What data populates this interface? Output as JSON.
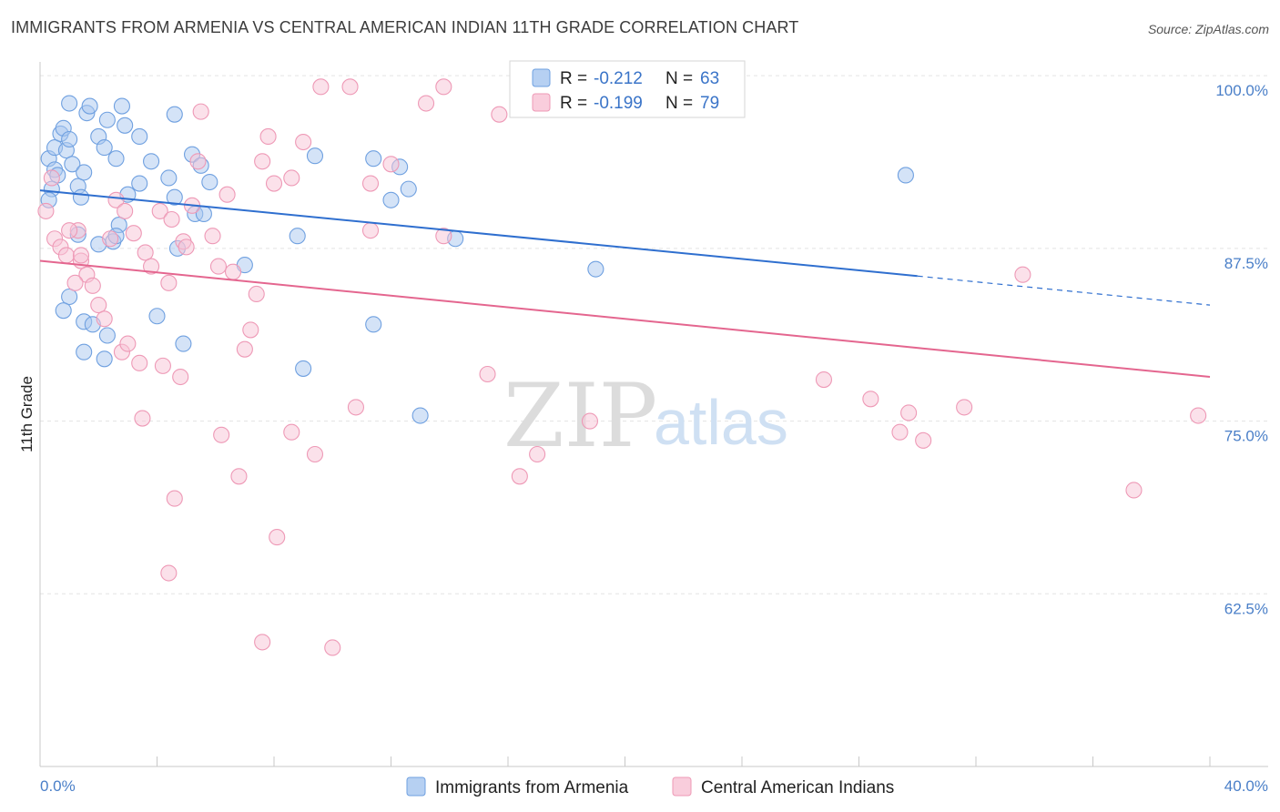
{
  "header": {
    "title": "IMMIGRANTS FROM ARMENIA VS CENTRAL AMERICAN INDIAN 11TH GRADE CORRELATION CHART",
    "source": "Source: ZipAtlas.com"
  },
  "watermark": {
    "zip": "ZIP",
    "atlas": "atlas"
  },
  "legend": {
    "r_label": "R =",
    "n_label": "N =",
    "rows": [
      {
        "r": "-0.212",
        "n": "63"
      },
      {
        "r": "-0.199",
        "n": "79"
      }
    ]
  },
  "chart_data": {
    "type": "scatter",
    "xlabel": "",
    "ylabel": "11th Grade",
    "xlim": [
      0.0,
      40.0
    ],
    "ylim": [
      50.0,
      101.0
    ],
    "x_tick_labels": {
      "left": "0.0%",
      "right": "40.0%"
    },
    "y_ticks": [
      {
        "value": 100.0,
        "label": "100.0%"
      },
      {
        "value": 87.5,
        "label": "87.5%"
      },
      {
        "value": 75.0,
        "label": "75.0%"
      },
      {
        "value": 62.5,
        "label": "62.5%"
      }
    ],
    "grid": true,
    "legend_placement": "top-center",
    "series": [
      {
        "name": "Immigrants from Armenia",
        "color": "#6fa0e0",
        "fill": "#a9c8f0",
        "line_color": "#2f6fcf",
        "trend": {
          "x0": 0.0,
          "y0": 91.7,
          "x1": 30.0,
          "y1": 85.5,
          "dash_to_x": 40.0,
          "dash_to_y": 83.4
        },
        "points": [
          [
            0.3,
            94.0
          ],
          [
            0.5,
            94.8
          ],
          [
            0.5,
            93.2
          ],
          [
            0.6,
            92.8
          ],
          [
            0.4,
            91.8
          ],
          [
            0.3,
            91.0
          ],
          [
            0.7,
            95.8
          ],
          [
            0.8,
            96.2
          ],
          [
            0.9,
            94.6
          ],
          [
            1.0,
            95.4
          ],
          [
            1.1,
            93.6
          ],
          [
            1.3,
            92.0
          ],
          [
            1.4,
            91.2
          ],
          [
            1.5,
            93.0
          ],
          [
            1.6,
            97.3
          ],
          [
            1.7,
            97.8
          ],
          [
            1.0,
            98.0
          ],
          [
            2.0,
            95.6
          ],
          [
            2.3,
            96.8
          ],
          [
            2.6,
            94.0
          ],
          [
            2.9,
            96.4
          ],
          [
            2.8,
            97.8
          ],
          [
            3.4,
            95.6
          ],
          [
            3.8,
            93.8
          ],
          [
            4.4,
            92.6
          ],
          [
            4.6,
            97.2
          ],
          [
            5.2,
            94.3
          ],
          [
            5.5,
            93.5
          ],
          [
            5.8,
            92.3
          ],
          [
            5.3,
            90.0
          ],
          [
            3.4,
            92.2
          ],
          [
            3.0,
            91.4
          ],
          [
            2.7,
            89.2
          ],
          [
            2.5,
            88.0
          ],
          [
            2.6,
            88.4
          ],
          [
            1.3,
            88.5
          ],
          [
            4.7,
            87.5
          ],
          [
            7.0,
            86.3
          ],
          [
            1.0,
            84.0
          ],
          [
            0.8,
            83.0
          ],
          [
            1.5,
            82.2
          ],
          [
            1.8,
            82.0
          ],
          [
            2.3,
            81.2
          ],
          [
            4.0,
            82.6
          ],
          [
            4.9,
            80.6
          ],
          [
            1.5,
            80.0
          ],
          [
            2.2,
            79.5
          ],
          [
            8.8,
            88.4
          ],
          [
            9.4,
            94.2
          ],
          [
            9.0,
            78.8
          ],
          [
            11.4,
            94.0
          ],
          [
            12.3,
            93.4
          ],
          [
            12.6,
            91.8
          ],
          [
            12.0,
            91.0
          ],
          [
            14.2,
            88.2
          ],
          [
            11.4,
            82.0
          ],
          [
            13.0,
            75.4
          ],
          [
            19.0,
            86.0
          ],
          [
            29.6,
            92.8
          ],
          [
            2.2,
            94.8
          ],
          [
            2.0,
            87.8
          ],
          [
            4.6,
            91.2
          ],
          [
            5.6,
            90.0
          ]
        ]
      },
      {
        "name": "Central American Indians",
        "color": "#ee99b6",
        "fill": "#f8c4d6",
        "line_color": "#e4668f",
        "trend": {
          "x0": 0.0,
          "y0": 86.6,
          "x1": 40.0,
          "y1": 78.2
        },
        "points": [
          [
            0.2,
            90.2
          ],
          [
            0.4,
            92.6
          ],
          [
            0.5,
            88.2
          ],
          [
            0.7,
            87.6
          ],
          [
            0.9,
            87.0
          ],
          [
            1.3,
            88.8
          ],
          [
            1.4,
            86.6
          ],
          [
            1.6,
            85.6
          ],
          [
            1.8,
            84.8
          ],
          [
            2.0,
            83.4
          ],
          [
            2.2,
            82.4
          ],
          [
            2.6,
            91.0
          ],
          [
            2.9,
            90.2
          ],
          [
            3.2,
            88.6
          ],
          [
            3.6,
            87.2
          ],
          [
            3.8,
            86.2
          ],
          [
            4.1,
            90.2
          ],
          [
            4.4,
            85.0
          ],
          [
            4.5,
            89.6
          ],
          [
            4.9,
            88.0
          ],
          [
            5.0,
            87.6
          ],
          [
            5.2,
            90.6
          ],
          [
            5.4,
            93.8
          ],
          [
            5.5,
            97.4
          ],
          [
            5.9,
            88.4
          ],
          [
            6.1,
            86.2
          ],
          [
            6.4,
            91.4
          ],
          [
            6.6,
            85.8
          ],
          [
            7.0,
            80.2
          ],
          [
            7.4,
            84.2
          ],
          [
            7.6,
            93.8
          ],
          [
            7.8,
            95.6
          ],
          [
            8.0,
            92.2
          ],
          [
            8.6,
            92.6
          ],
          [
            9.0,
            95.2
          ],
          [
            9.6,
            99.2
          ],
          [
            10.6,
            99.2
          ],
          [
            11.3,
            88.8
          ],
          [
            11.3,
            92.2
          ],
          [
            12.0,
            93.6
          ],
          [
            13.2,
            98.0
          ],
          [
            13.8,
            88.4
          ],
          [
            13.8,
            99.2
          ],
          [
            15.7,
            97.2
          ],
          [
            15.3,
            78.4
          ],
          [
            16.4,
            71.0
          ],
          [
            17.0,
            72.6
          ],
          [
            18.8,
            75.0
          ],
          [
            22.4,
            99.2
          ],
          [
            26.8,
            78.0
          ],
          [
            28.4,
            76.6
          ],
          [
            29.4,
            74.2
          ],
          [
            29.7,
            75.6
          ],
          [
            30.2,
            73.6
          ],
          [
            31.6,
            76.0
          ],
          [
            33.6,
            85.6
          ],
          [
            37.4,
            70.0
          ],
          [
            39.6,
            75.4
          ],
          [
            2.8,
            80.0
          ],
          [
            3.4,
            79.2
          ],
          [
            3.5,
            75.2
          ],
          [
            4.2,
            79.0
          ],
          [
            4.4,
            64.0
          ],
          [
            4.6,
            69.4
          ],
          [
            6.2,
            74.0
          ],
          [
            6.8,
            71.0
          ],
          [
            7.2,
            81.6
          ],
          [
            7.6,
            59.0
          ],
          [
            8.1,
            66.6
          ],
          [
            8.6,
            74.2
          ],
          [
            9.4,
            72.6
          ],
          [
            10.0,
            58.6
          ],
          [
            10.8,
            76.0
          ],
          [
            1.0,
            88.8
          ],
          [
            1.4,
            87.0
          ],
          [
            2.4,
            88.2
          ],
          [
            3.0,
            80.6
          ],
          [
            4.8,
            78.2
          ],
          [
            1.2,
            85.0
          ]
        ]
      }
    ]
  },
  "bottom_legend": [
    {
      "label": "Immigrants from Armenia"
    },
    {
      "label": "Central American Indians"
    }
  ]
}
